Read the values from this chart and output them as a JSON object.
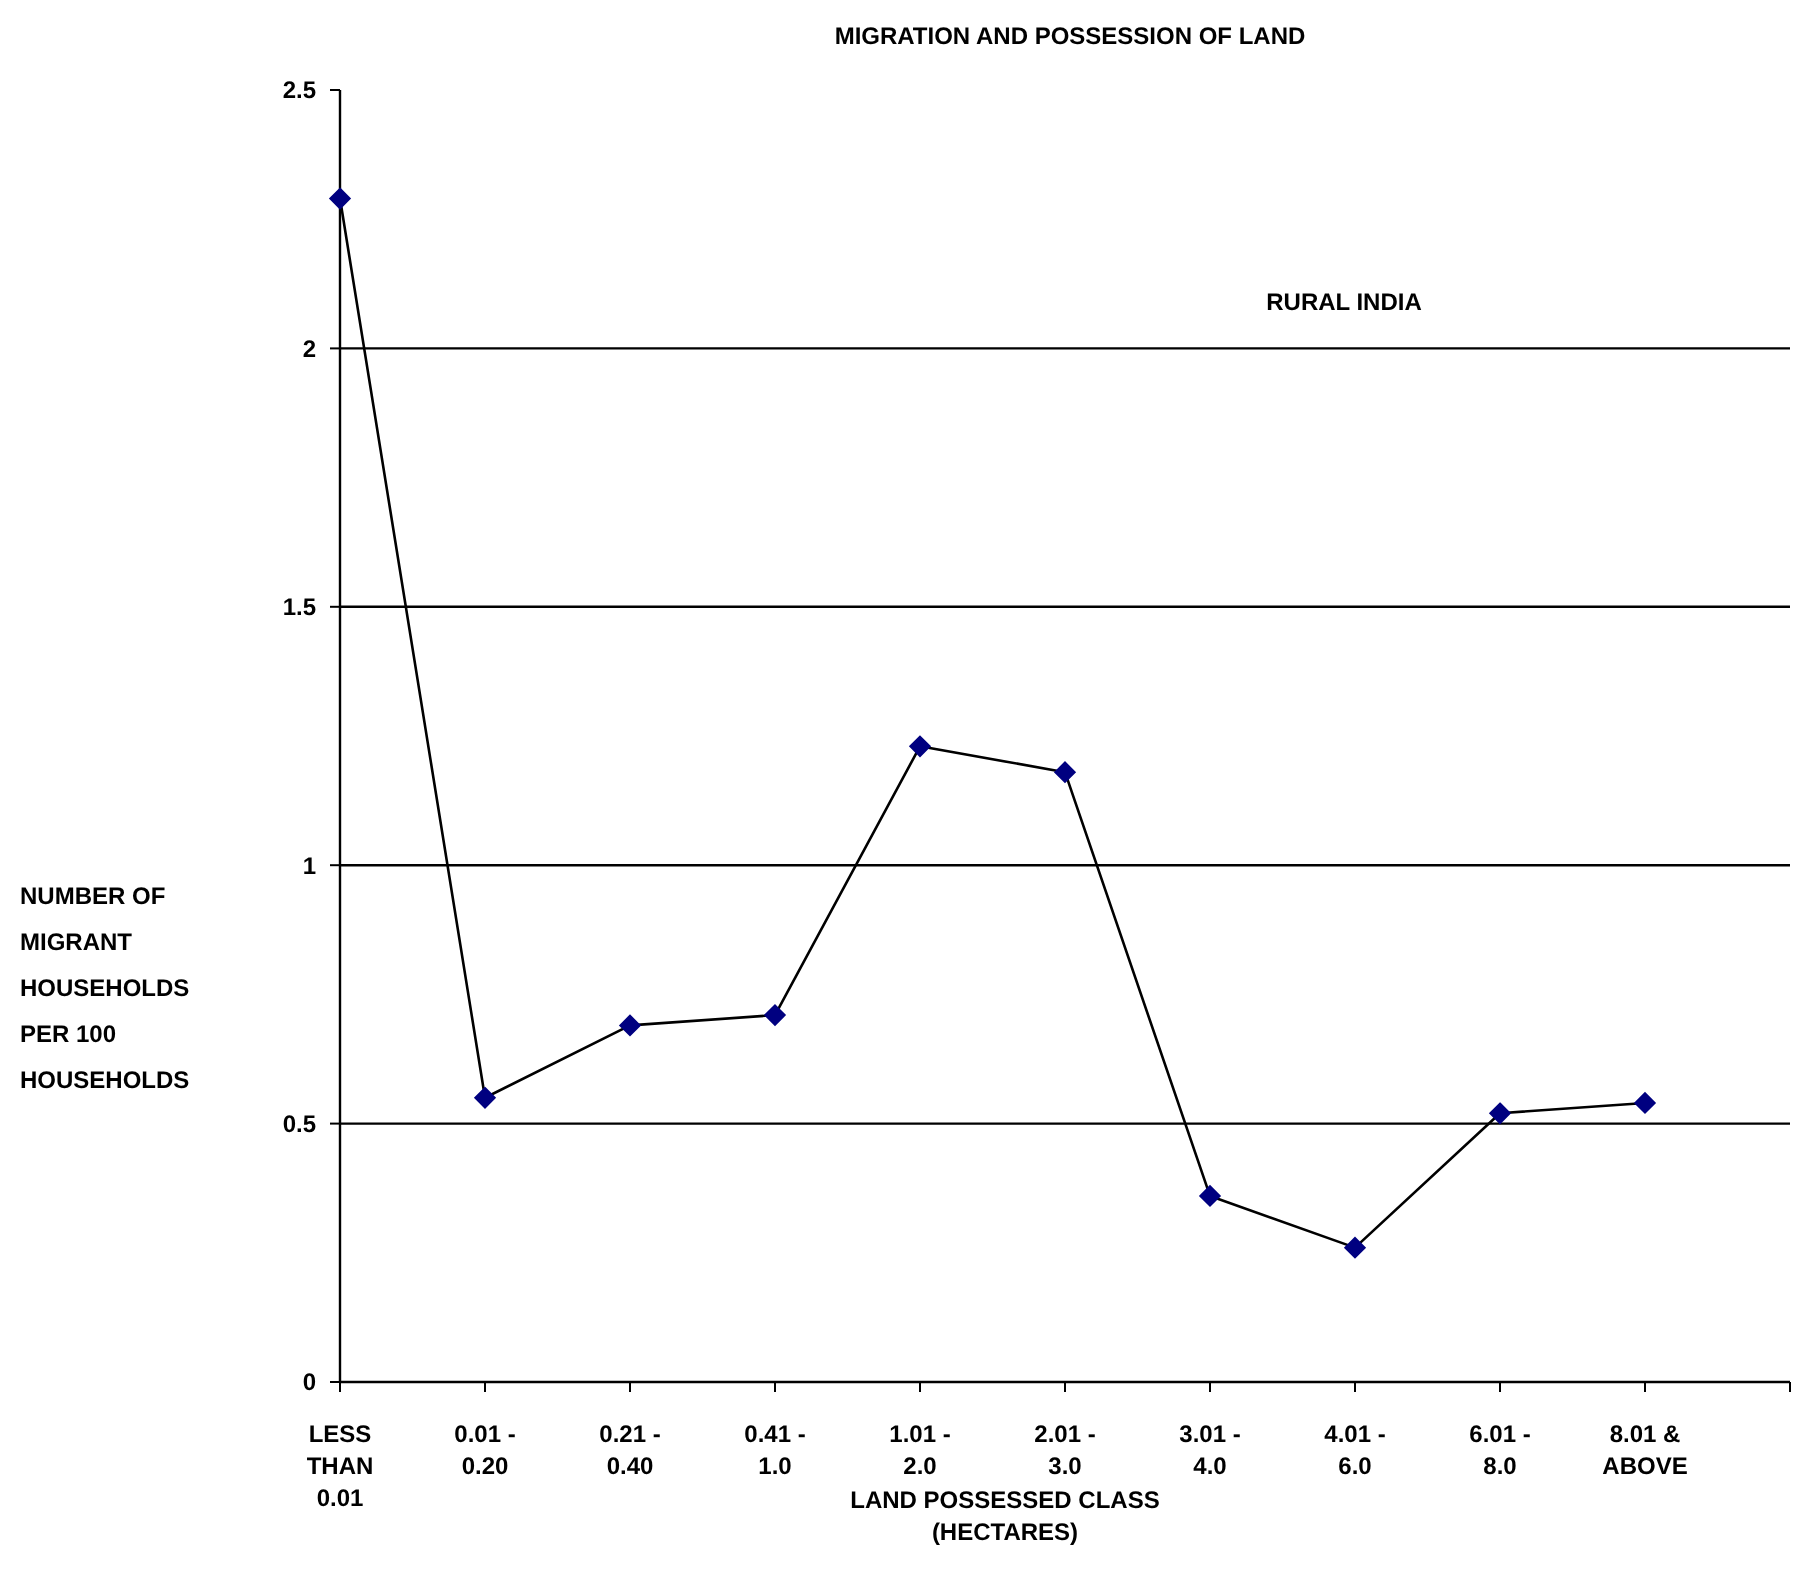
{
  "chart_data": {
    "type": "line",
    "title": "MIGRATION AND POSSESSION OF LAND",
    "xlabel": "LAND POSSESSED CLASS (HECTARES)",
    "ylabel": "NUMBER OF MIGRANT HOUSEHOLDS PER 100 HOUSEHOLDS",
    "categories": [
      "LESS THAN 0.01",
      "0.01 - 0.20",
      "0.21 - 0.40",
      "0.41 - 1.0",
      "1.01 - 2.0",
      "2.01 - 3.0",
      "3.01 - 4.0",
      "4.01 - 6.0",
      "6.01 - 8.0",
      "8.01 & ABOVE"
    ],
    "series": [
      {
        "color": "#000080",
        "values": [
          2.29,
          0.55,
          0.69,
          0.71,
          1.23,
          1.18,
          0.36,
          0.26,
          0.52,
          0.54
        ]
      }
    ],
    "ylim": [
      0,
      2.5
    ],
    "yticks": [
      0,
      0.5,
      1,
      1.5,
      2,
      2.5
    ],
    "grid": "y",
    "marker": "diamond",
    "line_style": "solid",
    "annotations": [
      "RURAL INDIA"
    ]
  }
}
